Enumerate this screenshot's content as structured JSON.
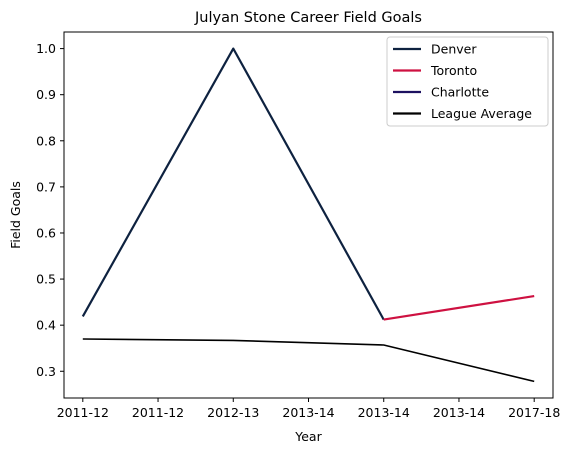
{
  "chart_data": {
    "type": "line",
    "title": "Julyan Stone Career Field Goals",
    "xlabel": "Year",
    "ylabel": "Field Goals",
    "x_tick_labels": [
      "2011-12",
      "2011-12",
      "2012-13",
      "2013-14",
      "2013-14",
      "2013-14",
      "2017-18"
    ],
    "xlim": [
      -0.25,
      6.25
    ],
    "ylim": [
      0.242,
      1.036
    ],
    "y_ticks": [
      0.3,
      0.4,
      0.5,
      0.6,
      0.7,
      0.8,
      0.9,
      1.0
    ],
    "y_tick_labels": [
      "0.3",
      "0.4",
      "0.5",
      "0.6",
      "0.7",
      "0.8",
      "0.9",
      "1.0"
    ],
    "grid": false,
    "legend_position": "top-right",
    "series": [
      {
        "name": "Denver",
        "color": "#0e2240",
        "x": [
          0,
          2,
          4
        ],
        "values": [
          0.419,
          1.0,
          0.412
        ]
      },
      {
        "name": "Toronto",
        "color": "#ce1141",
        "x": [
          4,
          6
        ],
        "values": [
          0.412,
          0.463
        ]
      },
      {
        "name": "Charlotte",
        "color": "#1d1160",
        "x": [],
        "values": []
      },
      {
        "name": "League Average",
        "color": "#000000",
        "x": [
          0,
          2,
          4,
          6
        ],
        "values": [
          0.37,
          0.367,
          0.357,
          0.278
        ]
      }
    ]
  }
}
